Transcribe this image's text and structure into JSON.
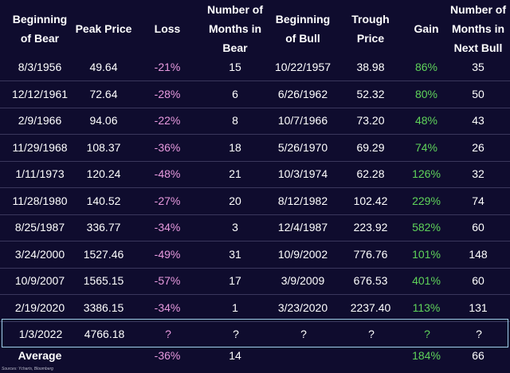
{
  "headers": [
    "Beginning\nof Bear",
    "Peak Price",
    "Loss",
    "Number of\nMonths in\nBear",
    "Beginning\nof Bull",
    "Trough\nPrice",
    "Gain",
    "Number of\nMonths in\nNext Bull"
  ],
  "rows": [
    [
      "8/3/1956",
      "49.64",
      "-21%",
      "15",
      "10/22/1957",
      "38.98",
      "86%",
      "35"
    ],
    [
      "12/12/1961",
      "72.64",
      "-28%",
      "6",
      "6/26/1962",
      "52.32",
      "80%",
      "50"
    ],
    [
      "2/9/1966",
      "94.06",
      "-22%",
      "8",
      "10/7/1966",
      "73.20",
      "48%",
      "43"
    ],
    [
      "11/29/1968",
      "108.37",
      "-36%",
      "18",
      "5/26/1970",
      "69.29",
      "74%",
      "26"
    ],
    [
      "1/11/1973",
      "120.24",
      "-48%",
      "21",
      "10/3/1974",
      "62.28",
      "126%",
      "32"
    ],
    [
      "11/28/1980",
      "140.52",
      "-27%",
      "20",
      "8/12/1982",
      "102.42",
      "229%",
      "74"
    ],
    [
      "8/25/1987",
      "336.77",
      "-34%",
      "3",
      "12/4/1987",
      "223.92",
      "582%",
      "60"
    ],
    [
      "3/24/2000",
      "1527.46",
      "-49%",
      "31",
      "10/9/2002",
      "776.76",
      "101%",
      "148"
    ],
    [
      "10/9/2007",
      "1565.15",
      "-57%",
      "17",
      "3/9/2009",
      "676.53",
      "401%",
      "60"
    ],
    [
      "2/19/2020",
      "3386.15",
      "-34%",
      "1",
      "3/23/2020",
      "2237.40",
      "113%",
      "131"
    ]
  ],
  "current_row": [
    "1/3/2022",
    "4766.18",
    "?",
    "?",
    "?",
    "?",
    "?",
    "?"
  ],
  "average_row": [
    "Average",
    "",
    "-36%",
    "14",
    "",
    "",
    "184%",
    "66"
  ],
  "colors": {
    "background": "#0f0c2e",
    "loss": "#e89adf",
    "gain": "#5fd35a",
    "highlight_border": "#9fd0e8"
  },
  "source": "Sources: Ycharts, Bloomberg"
}
